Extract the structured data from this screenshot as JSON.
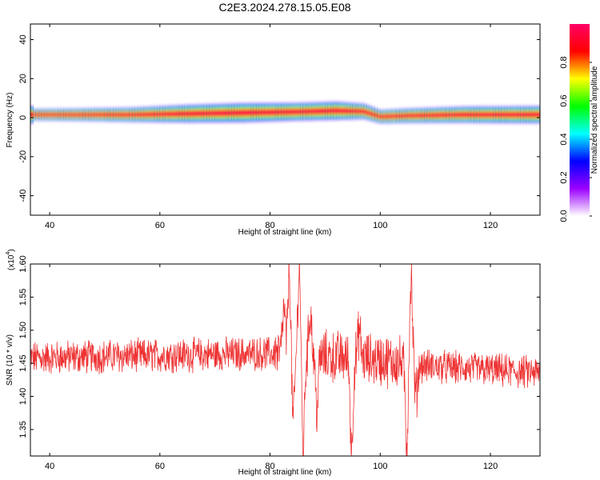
{
  "figure": {
    "title": "C2E3.2024.278.15.05.E08"
  },
  "chart_data": [
    {
      "type": "heatmap",
      "xlabel": "Height of straight line (km)",
      "ylabel": "Frequency (Hz)",
      "xlim": [
        36.5,
        129
      ],
      "ylim": [
        -50,
        48
      ],
      "xticks": [
        40,
        60,
        80,
        100,
        120
      ],
      "yticks": [
        40,
        20,
        0,
        -20,
        -40
      ],
      "ytick_labels": [
        "40",
        "20",
        "0",
        "-20",
        "-40"
      ],
      "colorbar": {
        "label": "Normalized spectral amplitude",
        "range": [
          0,
          1
        ],
        "ticks": [
          0.0,
          0.2,
          0.4,
          0.6,
          0.8
        ],
        "tick_labels": [
          "0.0",
          "0.2",
          "0.4",
          "0.6",
          "0.8"
        ],
        "colormap": [
          "#ffffff",
          "#9b00ff",
          "#0000ff",
          "#00ffff",
          "#00ff00",
          "#ffff00",
          "#ff0000",
          "#ff0066"
        ]
      },
      "band": [
        {
          "x": 37,
          "center": 1.5,
          "width": 2.2
        },
        {
          "x": 45,
          "center": 1.5,
          "width": 2.4
        },
        {
          "x": 55,
          "center": 1.5,
          "width": 2.8
        },
        {
          "x": 65,
          "center": 2.0,
          "width": 3.5
        },
        {
          "x": 75,
          "center": 2.5,
          "width": 3.8
        },
        {
          "x": 85,
          "center": 3.0,
          "width": 3.5
        },
        {
          "x": 92,
          "center": 3.5,
          "width": 3.6
        },
        {
          "x": 97,
          "center": 3.2,
          "width": 3.0
        },
        {
          "x": 100,
          "center": 0.5,
          "width": 2.6
        },
        {
          "x": 105,
          "center": 1.0,
          "width": 2.8
        },
        {
          "x": 115,
          "center": 1.5,
          "width": 3.2
        },
        {
          "x": 129,
          "center": 1.5,
          "width": 3.4
        }
      ]
    },
    {
      "type": "line",
      "xlabel": "Height of straight line (km)",
      "ylabel": "SNR (10 * v/v)",
      "yscale_label": "(x10",
      "yscale_exp": "4",
      "xlim": [
        36.5,
        129
      ],
      "ylim": [
        1.31,
        1.6
      ],
      "xticks": [
        40,
        60,
        80,
        100,
        120
      ],
      "yticks": [
        1.35,
        1.4,
        1.45,
        1.5,
        1.55,
        1.6
      ],
      "ytick_labels": [
        "1.35",
        "1.40",
        "1.45",
        "1.50",
        "1.55",
        "1.60"
      ],
      "series_color": "#ee3333",
      "baseline": [
        {
          "x": 36.5,
          "y": 1.458
        },
        {
          "x": 60,
          "y": 1.462
        },
        {
          "x": 80,
          "y": 1.465
        },
        {
          "x": 100,
          "y": 1.455
        },
        {
          "x": 110,
          "y": 1.445
        },
        {
          "x": 129,
          "y": 1.435
        }
      ],
      "features": [
        {
          "x": 82.5,
          "y": 1.53
        },
        {
          "x": 83.5,
          "y": 1.59
        },
        {
          "x": 84.2,
          "y": 1.36
        },
        {
          "x": 85.3,
          "y": 1.6
        },
        {
          "x": 86.0,
          "y": 1.32
        },
        {
          "x": 87.3,
          "y": 1.53
        },
        {
          "x": 88.5,
          "y": 1.38
        },
        {
          "x": 94.8,
          "y": 1.32
        },
        {
          "x": 96.2,
          "y": 1.5
        },
        {
          "x": 104.8,
          "y": 1.33
        },
        {
          "x": 105.6,
          "y": 1.58
        },
        {
          "x": 106.5,
          "y": 1.4
        }
      ]
    }
  ]
}
